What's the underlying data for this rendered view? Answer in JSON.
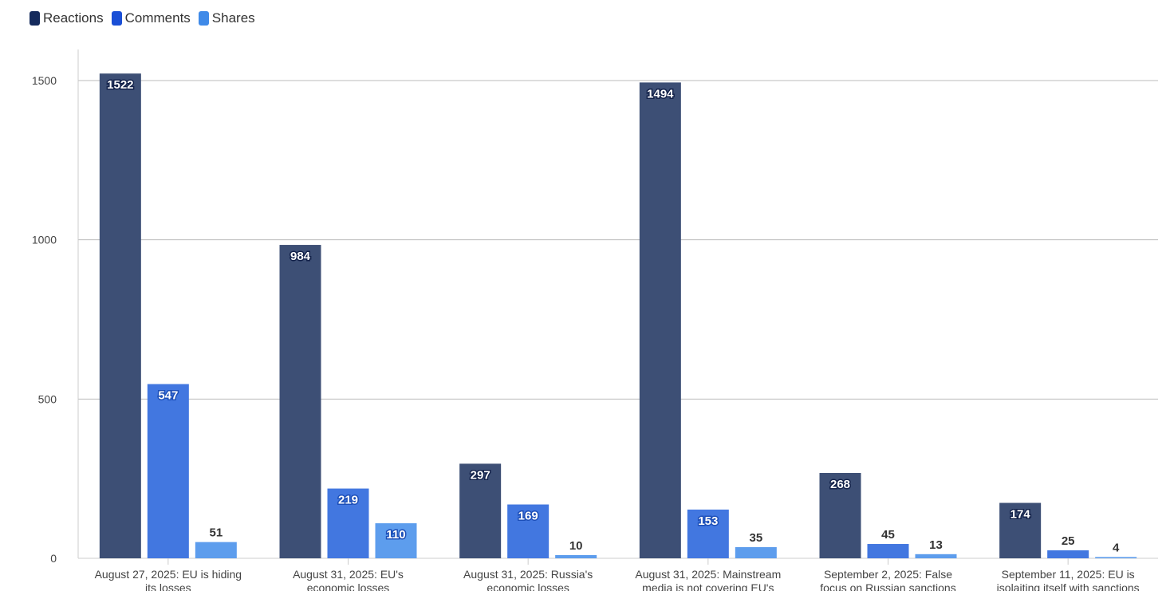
{
  "chart_data": {
    "type": "bar",
    "title": "",
    "xlabel": "",
    "ylabel": "",
    "ylim": [
      0,
      1600
    ],
    "yticks": [
      0,
      500,
      1000,
      1500
    ],
    "grid": true,
    "legend_position": "top-left",
    "categories": [
      [
        "August 27, 2025: EU is hiding",
        "its losses"
      ],
      [
        "August 31, 2025: EU's",
        "economic losses"
      ],
      [
        "August 31, 2025: Russia's",
        "economic losses"
      ],
      [
        "August 31, 2025: Mainstream",
        "media is not covering EU's"
      ],
      [
        "September 2, 2025: False",
        "focus on Russian sanctions"
      ],
      [
        "September 11, 2025: EU is",
        "isolaiting itself with sanctions"
      ]
    ],
    "series": [
      {
        "name": "Reactions",
        "color": "#3d4f75",
        "legend_color": "#142a5c",
        "values": [
          1522,
          984,
          297,
          1494,
          268,
          174
        ]
      },
      {
        "name": "Comments",
        "color": "#4277e0",
        "legend_color": "#1a4fd6",
        "values": [
          547,
          219,
          169,
          153,
          45,
          25
        ]
      },
      {
        "name": "Shares",
        "color": "#5d9ded",
        "legend_color": "#3f8ae8",
        "values": [
          51,
          110,
          10,
          35,
          13,
          4
        ]
      }
    ]
  }
}
